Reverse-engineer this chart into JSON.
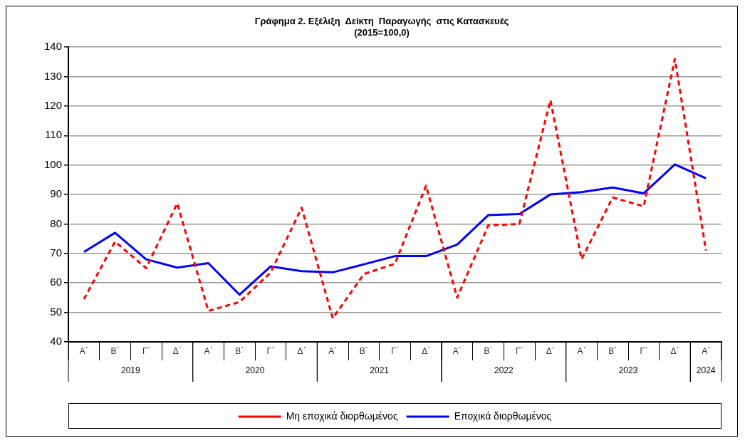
{
  "chart_data": {
    "type": "line",
    "title": [
      "Γράφημα 2. Εξέλιξη  Δείκτη  Παραγωγής  στις Κατασκευές",
      "(2015=100,0)"
    ],
    "categories": [
      "Α΄",
      "Β΄",
      "Γ΄",
      "Δ΄",
      "Α΄",
      "Β΄",
      "Γ΄",
      "Δ΄",
      "Α΄",
      "Β΄",
      "Γ΄",
      "Δ΄",
      "Α΄",
      "Β΄",
      "Γ΄",
      "Δ΄",
      "Α΄",
      "Β΄",
      "Γ΄",
      "Δ΄",
      "Α΄"
    ],
    "annotations": [
      "2019",
      "2020",
      "2021",
      "2022",
      "2023",
      "2024"
    ],
    "series": [
      {
        "name": "Μη εποχικά διορθωμένος",
        "color": "#ff0000",
        "line_style": "dashed",
        "values": [
          54.5,
          74,
          65,
          87,
          50.5,
          53.5,
          63.5,
          85.5,
          48,
          63,
          66.5,
          93,
          55,
          79.5,
          80,
          122,
          68,
          89,
          86,
          136,
          71
        ]
      },
      {
        "name": "Εποχικά διορθωμένος",
        "color": "#0000ff",
        "line_style": "solid",
        "values": [
          70.5,
          77,
          68,
          65.2,
          66.7,
          56,
          65.6,
          64,
          63.6,
          66.3,
          69.1,
          69.1,
          73,
          83,
          83.4,
          90,
          90.8,
          92.4,
          90.4,
          100.2,
          95.5
        ]
      }
    ],
    "ylim": [
      40,
      140
    ],
    "yticks": [
      40,
      50,
      60,
      70,
      80,
      90,
      100,
      110,
      120,
      130,
      140
    ],
    "grid": "y",
    "legend": "bottom",
    "marker": "none"
  }
}
